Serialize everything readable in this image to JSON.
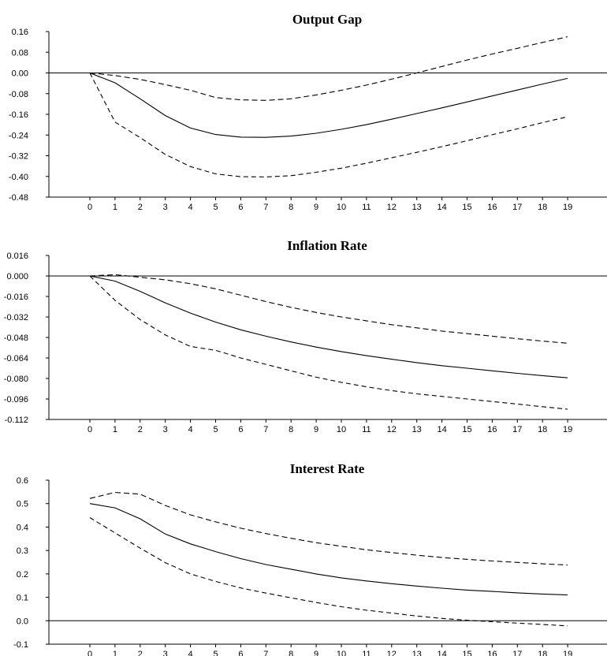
{
  "chart_data": [
    {
      "type": "line",
      "title": "Output Gap",
      "xlabel": "",
      "ylabel": "",
      "x": [
        0,
        1,
        2,
        3,
        4,
        5,
        6,
        7,
        8,
        9,
        10,
        11,
        12,
        13,
        14,
        15,
        16,
        17,
        18,
        19
      ],
      "x_ticks": [
        "0",
        "1",
        "2",
        "3",
        "4",
        "5",
        "6",
        "7",
        "8",
        "9",
        "10",
        "11",
        "12",
        "13",
        "14",
        "15",
        "16",
        "17",
        "18",
        "19"
      ],
      "ylim": [
        -0.48,
        0.16
      ],
      "y_ticks": [
        "0.16",
        "0.08",
        "0.00",
        "-0.08",
        "-0.16",
        "-0.24",
        "-0.32",
        "-0.40",
        "-0.48"
      ],
      "y_tick_values": [
        0.16,
        0.08,
        0.0,
        -0.08,
        -0.16,
        -0.24,
        -0.32,
        -0.4,
        -0.48
      ],
      "zero_line": true,
      "grid": false,
      "legend": "none",
      "series": [
        {
          "style": "solid",
          "values": [
            0.0,
            -0.038,
            -0.1,
            -0.165,
            -0.213,
            -0.238,
            -0.248,
            -0.249,
            -0.244,
            -0.233,
            -0.218,
            -0.2,
            -0.179,
            -0.157,
            -0.135,
            -0.112,
            -0.089,
            -0.066,
            -0.043,
            -0.021
          ]
        },
        {
          "style": "dashed",
          "values": [
            0.0,
            -0.01,
            -0.025,
            -0.045,
            -0.067,
            -0.095,
            -0.104,
            -0.106,
            -0.1,
            -0.085,
            -0.067,
            -0.047,
            -0.024,
            0.0,
            0.025,
            0.05,
            0.073,
            0.095,
            0.118,
            0.14
          ]
        },
        {
          "style": "dashed",
          "values": [
            0.0,
            -0.19,
            -0.25,
            -0.315,
            -0.362,
            -0.39,
            -0.401,
            -0.402,
            -0.397,
            -0.384,
            -0.368,
            -0.349,
            -0.328,
            -0.307,
            -0.285,
            -0.262,
            -0.239,
            -0.216,
            -0.192,
            -0.169
          ]
        }
      ]
    },
    {
      "type": "line",
      "title": "Inflation Rate",
      "xlabel": "",
      "ylabel": "",
      "x": [
        0,
        1,
        2,
        3,
        4,
        5,
        6,
        7,
        8,
        9,
        10,
        11,
        12,
        13,
        14,
        15,
        16,
        17,
        18,
        19
      ],
      "x_ticks": [
        "0",
        "1",
        "2",
        "3",
        "4",
        "5",
        "6",
        "7",
        "8",
        "9",
        "10",
        "11",
        "12",
        "13",
        "14",
        "15",
        "16",
        "17",
        "18",
        "19"
      ],
      "ylim": [
        -0.112,
        0.016
      ],
      "y_ticks": [
        "0.016",
        "0.000",
        "-0.016",
        "-0.032",
        "-0.048",
        "-0.064",
        "-0.080",
        "-0.096",
        "-0.112"
      ],
      "y_tick_values": [
        0.016,
        0.0,
        -0.016,
        -0.032,
        -0.048,
        -0.064,
        -0.08,
        -0.096,
        -0.112
      ],
      "zero_line": true,
      "grid": false,
      "legend": "none",
      "series": [
        {
          "style": "solid",
          "values": [
            0.0,
            -0.004,
            -0.012,
            -0.021,
            -0.029,
            -0.036,
            -0.042,
            -0.047,
            -0.0515,
            -0.0555,
            -0.059,
            -0.0622,
            -0.065,
            -0.0676,
            -0.07,
            -0.072,
            -0.074,
            -0.076,
            -0.0778,
            -0.0795
          ]
        },
        {
          "style": "dashed",
          "values": [
            0.0,
            0.001,
            -0.001,
            -0.003,
            -0.006,
            -0.01,
            -0.015,
            -0.02,
            -0.0245,
            -0.0285,
            -0.032,
            -0.035,
            -0.038,
            -0.0405,
            -0.043,
            -0.045,
            -0.047,
            -0.049,
            -0.0508,
            -0.0525
          ]
        },
        {
          "style": "dashed",
          "values": [
            0.0,
            -0.019,
            -0.034,
            -0.046,
            -0.055,
            -0.058,
            -0.064,
            -0.069,
            -0.074,
            -0.079,
            -0.083,
            -0.0865,
            -0.0895,
            -0.092,
            -0.094,
            -0.096,
            -0.098,
            -0.1,
            -0.102,
            -0.104
          ]
        }
      ]
    },
    {
      "type": "line",
      "title": "Interest Rate",
      "xlabel": "",
      "ylabel": "",
      "x": [
        0,
        1,
        2,
        3,
        4,
        5,
        6,
        7,
        8,
        9,
        10,
        11,
        12,
        13,
        14,
        15,
        16,
        17,
        18,
        19
      ],
      "x_ticks": [
        "0",
        "1",
        "2",
        "3",
        "4",
        "5",
        "6",
        "7",
        "8",
        "9",
        "10",
        "11",
        "12",
        "13",
        "14",
        "15",
        "16",
        "17",
        "18",
        "19"
      ],
      "ylim": [
        -0.1,
        0.6
      ],
      "y_ticks": [
        "0.6",
        "0.5",
        "0.4",
        "0.3",
        "0.2",
        "0.1",
        "0.0",
        "-0.1"
      ],
      "y_tick_values": [
        0.6,
        0.5,
        0.4,
        0.3,
        0.2,
        0.1,
        0.0,
        -0.1
      ],
      "zero_line": true,
      "grid": false,
      "legend": "none",
      "series": [
        {
          "style": "solid",
          "values": [
            0.5,
            0.482,
            0.435,
            0.37,
            0.328,
            0.295,
            0.265,
            0.24,
            0.22,
            0.2,
            0.183,
            0.17,
            0.158,
            0.148,
            0.139,
            0.131,
            0.125,
            0.119,
            0.114,
            0.11
          ]
        },
        {
          "style": "dashed",
          "values": [
            0.522,
            0.548,
            0.54,
            0.492,
            0.452,
            0.422,
            0.395,
            0.372,
            0.352,
            0.333,
            0.318,
            0.303,
            0.291,
            0.28,
            0.27,
            0.262,
            0.255,
            0.249,
            0.243,
            0.238
          ]
        },
        {
          "style": "dashed",
          "values": [
            0.44,
            0.375,
            0.31,
            0.248,
            0.2,
            0.168,
            0.14,
            0.118,
            0.098,
            0.078,
            0.06,
            0.045,
            0.033,
            0.02,
            0.01,
            0.002,
            -0.004,
            -0.01,
            -0.016,
            -0.022
          ]
        }
      ]
    }
  ]
}
